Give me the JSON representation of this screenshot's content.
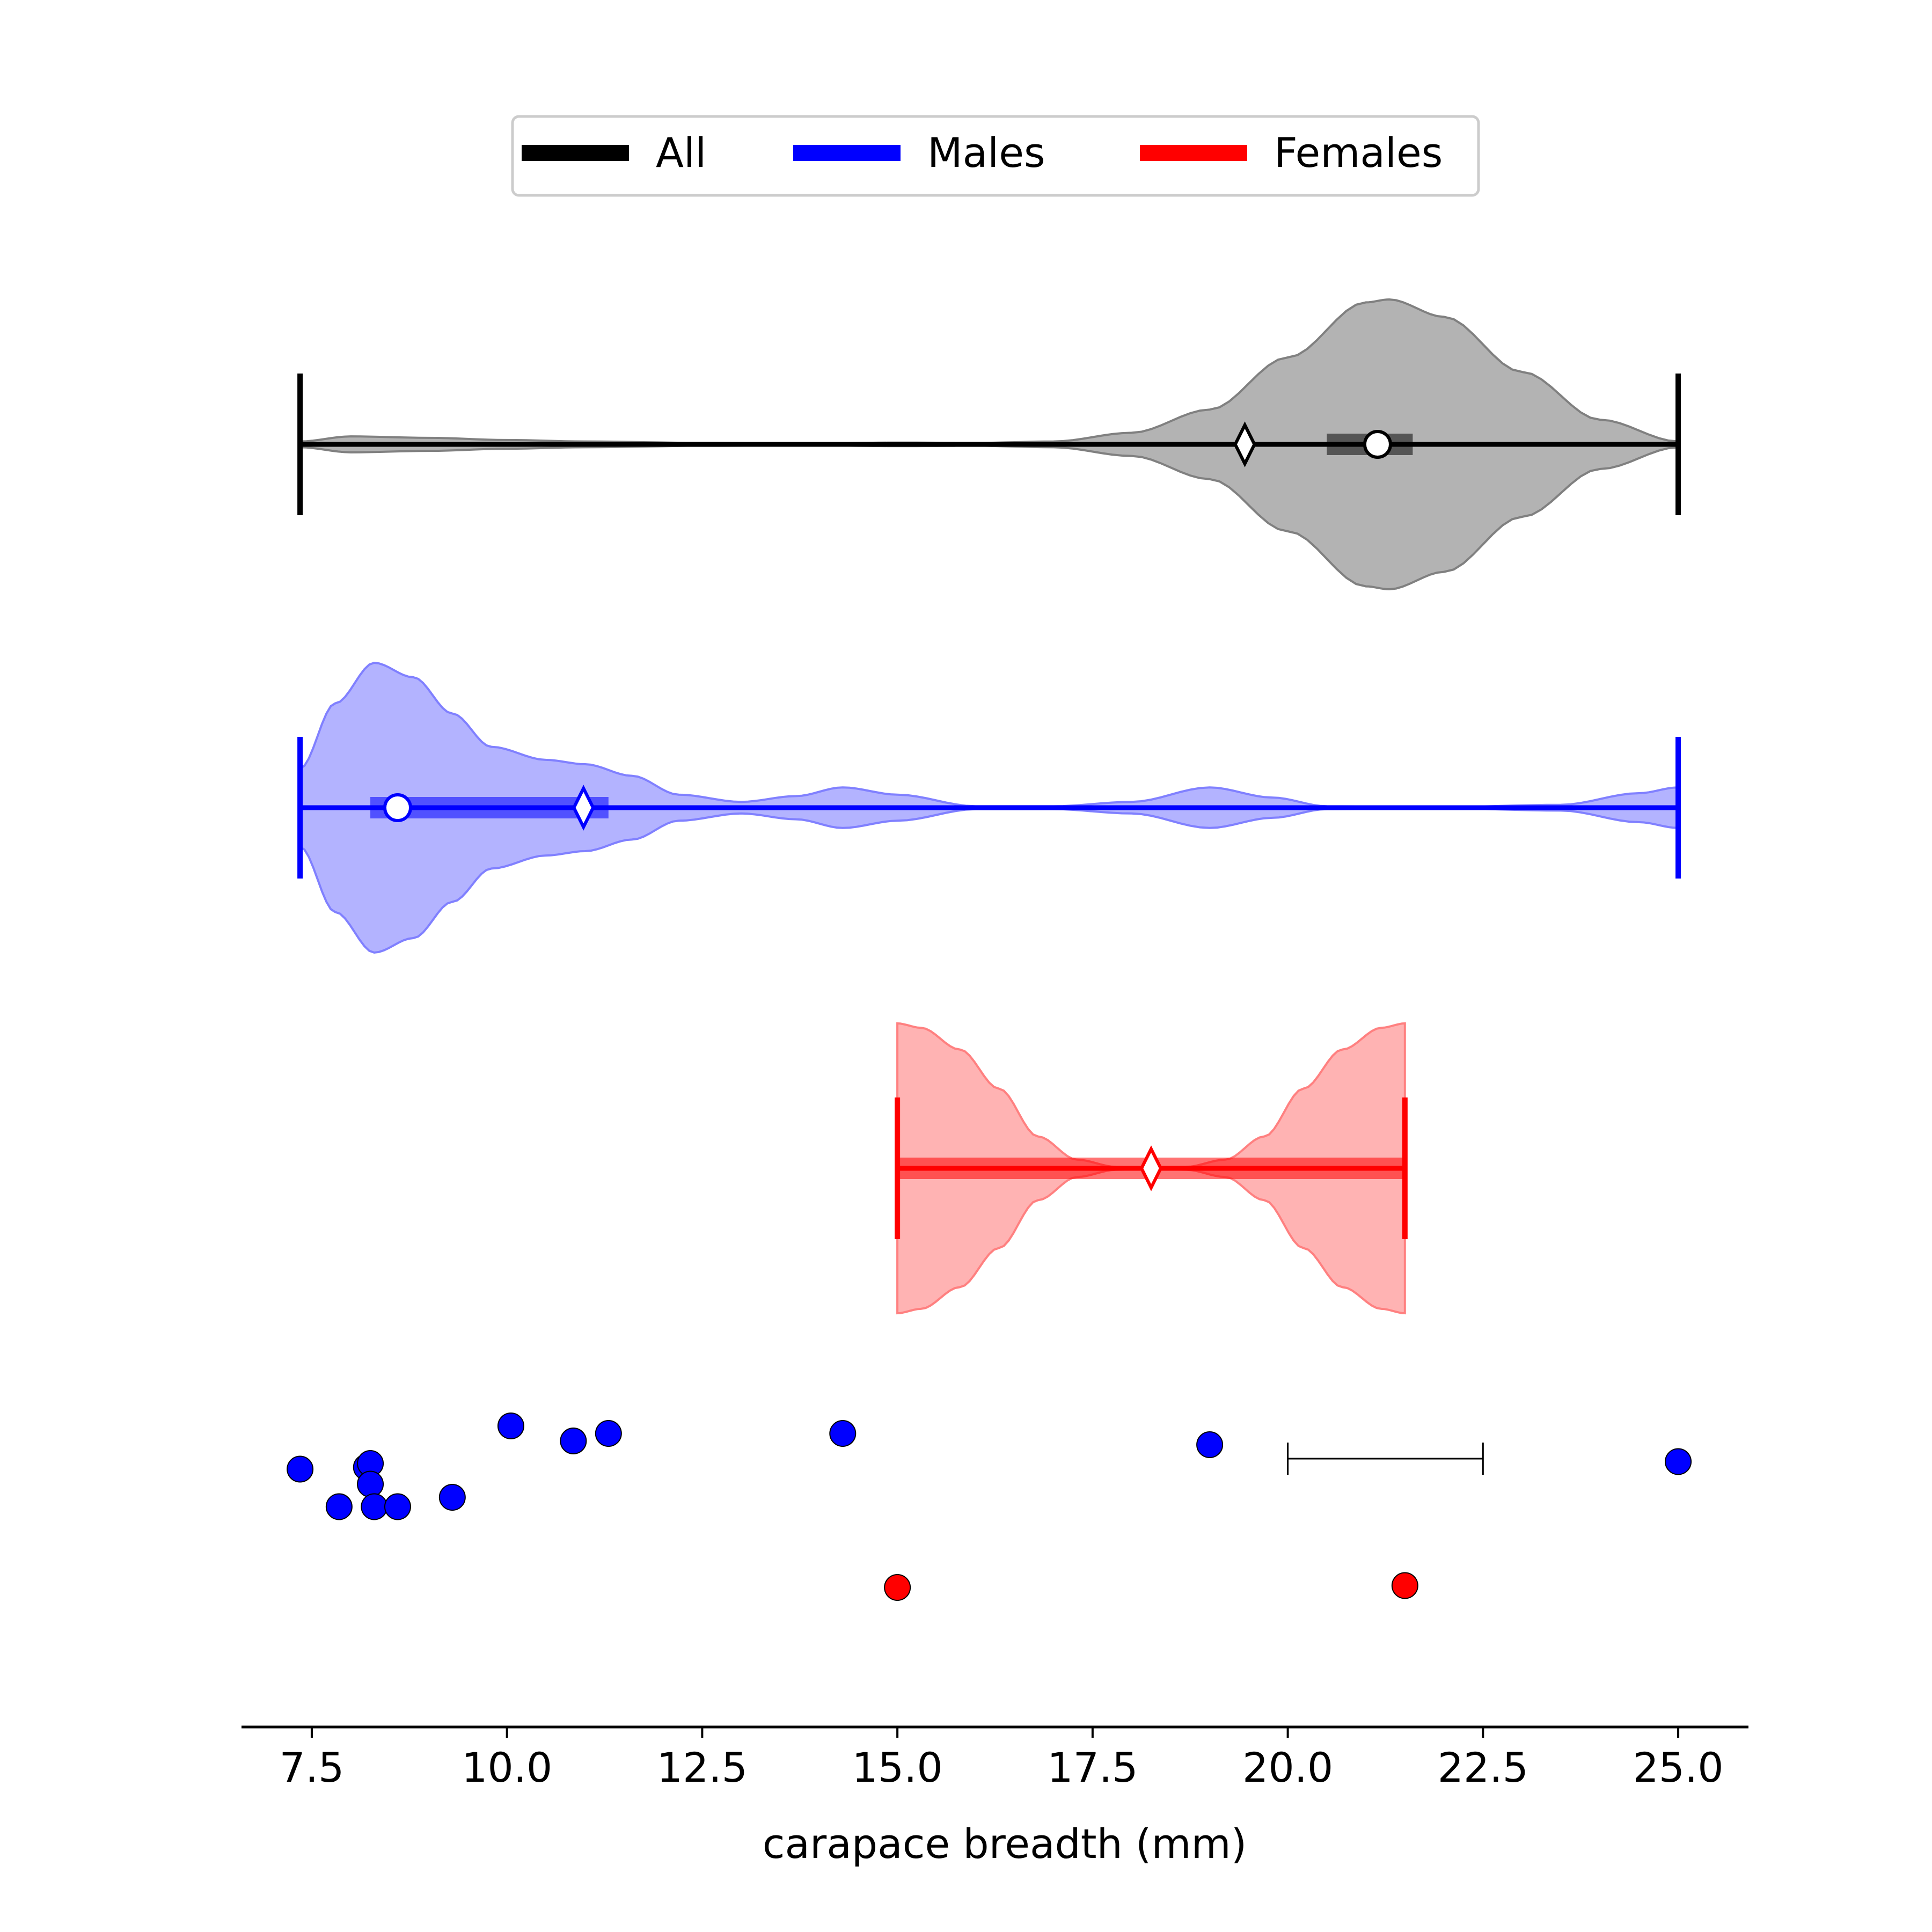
{
  "chart_data": {
    "type": "violin",
    "xlabel": "carapace breadth (mm)",
    "xlim": [
      6.6,
      25.9
    ],
    "xticks": [
      7.5,
      10.0,
      12.5,
      15.0,
      17.5,
      20.0,
      22.5,
      25.0
    ],
    "xtick_labels": [
      "7.5",
      "10.0",
      "12.5",
      "15.0",
      "17.5",
      "20.0",
      "22.5",
      "25.0"
    ],
    "legend": {
      "placement": "top-center",
      "entries": [
        {
          "label": "All",
          "color": "#000000"
        },
        {
          "label": "Males",
          "color": "#0000ff"
        },
        {
          "label": "Females",
          "color": "#ff0000"
        }
      ]
    },
    "series": [
      {
        "name": "All",
        "color": "#000000",
        "fill": "#b3b3b3",
        "edge": "#808080",
        "range": [
          7.35,
          25.0
        ],
        "mean": 19.45,
        "median": 21.15,
        "iqr": [
          20.5,
          21.6
        ],
        "density": [
          [
            7.35,
            0.02
          ],
          [
            8.0,
            0.055
          ],
          [
            9.0,
            0.045
          ],
          [
            10.0,
            0.03
          ],
          [
            11.0,
            0.02
          ],
          [
            12.5,
            0.01
          ],
          [
            14.0,
            0.008
          ],
          [
            15.0,
            0.012
          ],
          [
            16.0,
            0.01
          ],
          [
            17.0,
            0.02
          ],
          [
            18.0,
            0.08
          ],
          [
            19.0,
            0.24
          ],
          [
            20.0,
            0.6
          ],
          [
            21.0,
            0.98
          ],
          [
            21.3,
            1.0
          ],
          [
            22.0,
            0.88
          ],
          [
            23.0,
            0.5
          ],
          [
            24.0,
            0.17
          ],
          [
            25.0,
            0.02
          ]
        ]
      },
      {
        "name": "Males",
        "color": "#0000ff",
        "fill": "#b3b3ff",
        "edge": "#8080ff",
        "range": [
          7.35,
          25.0
        ],
        "mean": 10.98,
        "median": 8.6,
        "iqr": [
          8.25,
          11.3
        ],
        "density": [
          [
            7.35,
            0.27
          ],
          [
            7.8,
            0.72
          ],
          [
            8.3,
            1.0
          ],
          [
            8.8,
            0.9
          ],
          [
            9.3,
            0.65
          ],
          [
            9.8,
            0.42
          ],
          [
            10.5,
            0.33
          ],
          [
            11.0,
            0.3
          ],
          [
            11.6,
            0.22
          ],
          [
            12.2,
            0.09
          ],
          [
            13.0,
            0.04
          ],
          [
            13.7,
            0.08
          ],
          [
            14.3,
            0.14
          ],
          [
            15.0,
            0.09
          ],
          [
            16.0,
            0.01
          ],
          [
            17.0,
            0.01
          ],
          [
            18.0,
            0.04
          ],
          [
            19.0,
            0.14
          ],
          [
            19.8,
            0.07
          ],
          [
            20.5,
            0.01
          ],
          [
            22.0,
            0.005
          ],
          [
            23.5,
            0.02
          ],
          [
            24.5,
            0.1
          ],
          [
            25.0,
            0.14
          ]
        ]
      },
      {
        "name": "Females",
        "color": "#ff0000",
        "fill": "#ffb3b3",
        "edge": "#ff8080",
        "range": [
          15.0,
          21.5
        ],
        "mean": 18.25,
        "median": 18.25,
        "iqr": [
          15.0,
          21.5
        ],
        "density": [
          [
            15.0,
            1.0
          ],
          [
            15.3,
            0.97
          ],
          [
            15.8,
            0.82
          ],
          [
            16.3,
            0.55
          ],
          [
            16.8,
            0.22
          ],
          [
            17.3,
            0.06
          ],
          [
            17.8,
            0.01
          ],
          [
            18.25,
            0.005
          ],
          [
            18.7,
            0.01
          ],
          [
            19.2,
            0.06
          ],
          [
            19.7,
            0.22
          ],
          [
            20.2,
            0.55
          ],
          [
            20.7,
            0.82
          ],
          [
            21.2,
            0.97
          ],
          [
            21.5,
            1.0
          ]
        ]
      }
    ],
    "scatter": [
      {
        "name": "Males",
        "color": "#0000ff",
        "points": [
          [
            7.35,
            0.35
          ],
          [
            7.85,
            0.15
          ],
          [
            8.2,
            0.36
          ],
          [
            8.25,
            0.38
          ],
          [
            8.25,
            0.27
          ],
          [
            8.3,
            0.15
          ],
          [
            8.6,
            0.15
          ],
          [
            9.3,
            0.2
          ],
          [
            10.05,
            0.58
          ],
          [
            10.85,
            0.5
          ],
          [
            11.3,
            0.54
          ],
          [
            14.3,
            0.54
          ],
          [
            19.0,
            0.48
          ],
          [
            25.0,
            0.39
          ]
        ]
      },
      {
        "name": "Females",
        "color": "#ff0000",
        "points": [
          [
            15.0,
            -0.28
          ],
          [
            21.5,
            -0.27
          ]
        ]
      }
    ],
    "scale_bar": {
      "x": [
        20.0,
        22.5
      ]
    }
  }
}
